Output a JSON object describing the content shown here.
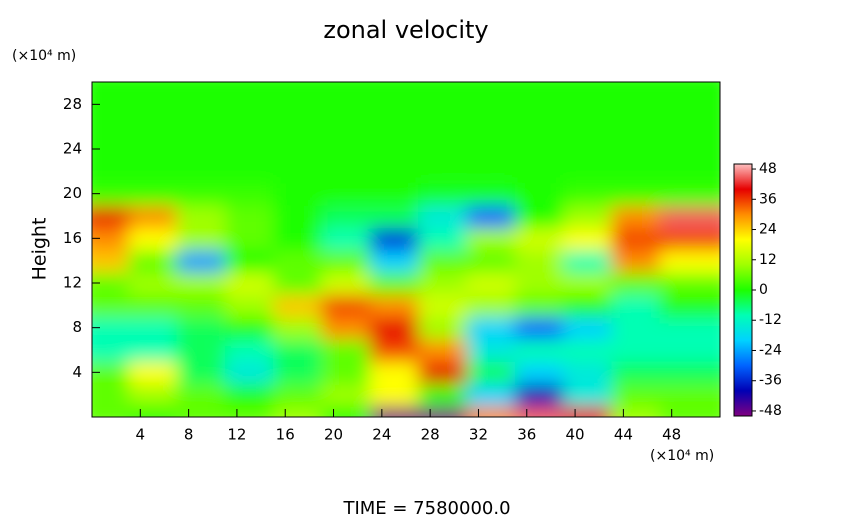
{
  "chart_data": {
    "type": "heatmap",
    "title": "zonal velocity",
    "ylabel": "Height",
    "x_unit": "(×10⁴ m)",
    "y_unit": "(×10⁴ m)",
    "footer": "TIME = 7580000.0",
    "xlim": [
      0,
      52
    ],
    "ylim": [
      0,
      30
    ],
    "xticks": [
      4,
      8,
      12,
      16,
      20,
      24,
      28,
      32,
      36,
      40,
      44,
      48
    ],
    "yticks": [
      4,
      8,
      12,
      16,
      20,
      24,
      28
    ],
    "x_bins": [
      0,
      4,
      8,
      12,
      16,
      20,
      24,
      28,
      32,
      36,
      40,
      44,
      48,
      52
    ],
    "y_bins": [
      0,
      2,
      4,
      6,
      8,
      10,
      12,
      14,
      16,
      18,
      20,
      22,
      24,
      26,
      28,
      30
    ],
    "z": [
      [
        5,
        0,
        5,
        5,
        10,
        0,
        -50,
        -50,
        30,
        45,
        40,
        10,
        5
      ],
      [
        5,
        10,
        5,
        0,
        5,
        10,
        20,
        0,
        -20,
        -40,
        -15,
        5,
        5
      ],
      [
        5,
        20,
        -5,
        -15,
        -5,
        5,
        20,
        40,
        -5,
        -20,
        -15,
        -5,
        -5
      ],
      [
        -10,
        -10,
        -5,
        -10,
        -5,
        5,
        35,
        30,
        -15,
        -10,
        -10,
        -10,
        -10
      ],
      [
        -10,
        -10,
        -5,
        0,
        10,
        30,
        40,
        10,
        -20,
        -30,
        -20,
        -10,
        -10
      ],
      [
        5,
        5,
        5,
        10,
        25,
        35,
        30,
        15,
        10,
        5,
        0,
        -10,
        0
      ],
      [
        5,
        10,
        10,
        15,
        5,
        15,
        5,
        10,
        15,
        10,
        10,
        5,
        5
      ],
      [
        25,
        5,
        -25,
        0,
        5,
        5,
        -20,
        5,
        5,
        10,
        -10,
        30,
        20
      ],
      [
        30,
        20,
        10,
        5,
        0,
        -10,
        -35,
        -10,
        10,
        15,
        20,
        35,
        35
      ],
      [
        38,
        30,
        10,
        5,
        0,
        -5,
        -5,
        -15,
        -30,
        0,
        10,
        30,
        45
      ],
      [
        2,
        2,
        2,
        2,
        0,
        0,
        0,
        -2,
        -2,
        0,
        2,
        2,
        2
      ],
      [
        0,
        0,
        0,
        0,
        0,
        0,
        0,
        0,
        0,
        0,
        0,
        0,
        0
      ],
      [
        0,
        0,
        0,
        0,
        0,
        0,
        0,
        0,
        0,
        0,
        0,
        0,
        0
      ],
      [
        0,
        0,
        0,
        0,
        0,
        0,
        0,
        0,
        0,
        0,
        0,
        0,
        0
      ],
      [
        0,
        0,
        0,
        0,
        0,
        0,
        0,
        0,
        0,
        0,
        0,
        0,
        0
      ]
    ],
    "clim": [
      -50,
      50
    ],
    "cticks": [
      -48,
      -36,
      -24,
      -12,
      0,
      12,
      24,
      36,
      48
    ],
    "colors": [
      "#800080",
      "#0000b4",
      "#0064ff",
      "#00d2ff",
      "#00ffb4",
      "#1eff00",
      "#a0ff00",
      "#ffff00",
      "#ff8c00",
      "#e60000",
      "#ffc0c0"
    ]
  }
}
